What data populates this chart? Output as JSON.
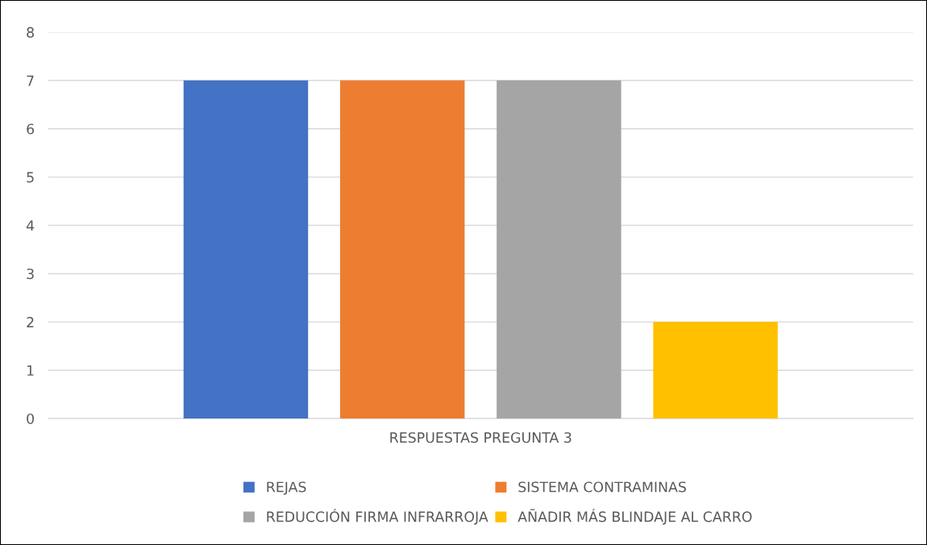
{
  "chart_data": {
    "type": "bar",
    "categories": [
      "RESPUESTAS PREGUNTA 3"
    ],
    "series": [
      {
        "name": "REJAS",
        "color": "#4472c4",
        "values": [
          7
        ]
      },
      {
        "name": "SISTEMA CONTRAMINAS",
        "color": "#ed7d31",
        "values": [
          7
        ]
      },
      {
        "name": "REDUCCIÓN FIRMA INFRARROJA",
        "color": "#a5a5a5",
        "values": [
          7
        ]
      },
      {
        "name": "AÑADIR MÁS BLINDAJE AL CARRO",
        "color": "#ffc000",
        "values": [
          2
        ]
      }
    ],
    "ylim": [
      0,
      8
    ],
    "yticks": [
      0,
      1,
      2,
      3,
      4,
      5,
      6,
      7,
      8
    ],
    "grid": "y",
    "legend": "bottom"
  }
}
